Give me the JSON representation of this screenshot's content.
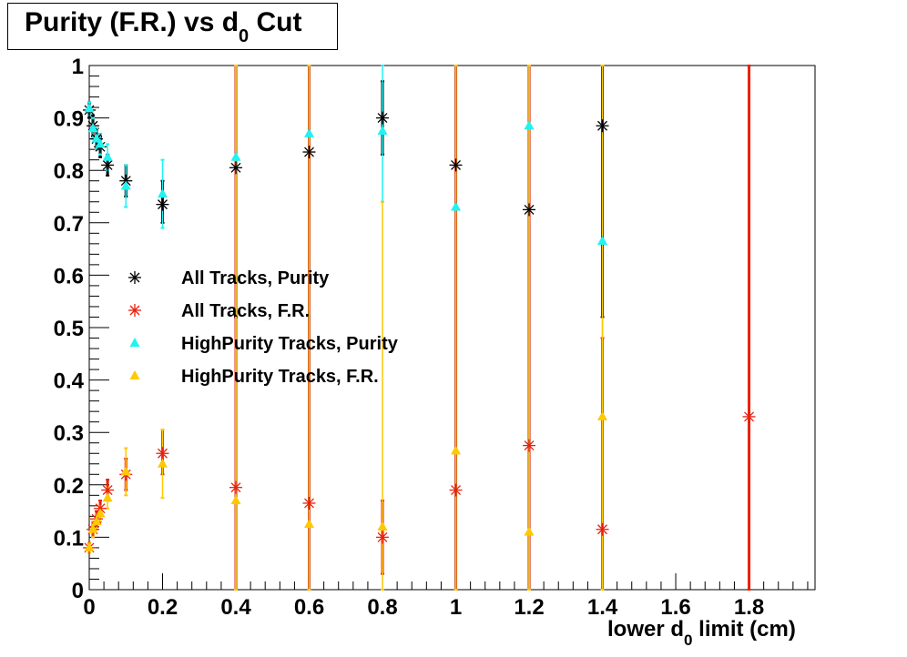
{
  "title": {
    "main": "Purity (F.R.) vs d",
    "sub": "0",
    "tail": "Cut"
  },
  "xlabel": {
    "main": "lower d",
    "sub": "0",
    "tail": "limit (cm)"
  },
  "colors": {
    "all_purity": "#000000",
    "all_fr": "#e8200c",
    "hp_purity": "#21f2f2",
    "hp_fr": "#ffc800"
  },
  "chart_data": {
    "type": "scatter",
    "title": "Purity (F.R.) vs d0 Cut",
    "xlabel": "lower d0 limit (cm)",
    "ylabel": "",
    "xlim": [
      0,
      1.98
    ],
    "ylim": [
      0,
      1
    ],
    "x_ticks": [
      "0",
      "0.2",
      "0.4",
      "0.6",
      "0.8",
      "1",
      "1.2",
      "1.4",
      "1.6",
      "1.8"
    ],
    "y_ticks": [
      "0",
      "0.1",
      "0.2",
      "0.3",
      "0.4",
      "0.5",
      "0.6",
      "0.7",
      "0.8",
      "0.9",
      "1"
    ],
    "legend_position": "center-left",
    "series": [
      {
        "name": "All Tracks, Purity",
        "marker": "star",
        "color": "#000000",
        "points": [
          {
            "x": 0.0,
            "y": 0.915,
            "lo": 0.9,
            "hi": 0.93
          },
          {
            "x": 0.01,
            "y": 0.885,
            "lo": 0.865,
            "hi": 0.905
          },
          {
            "x": 0.02,
            "y": 0.86,
            "lo": 0.84,
            "hi": 0.88
          },
          {
            "x": 0.03,
            "y": 0.845,
            "lo": 0.825,
            "hi": 0.865
          },
          {
            "x": 0.05,
            "y": 0.81,
            "lo": 0.79,
            "hi": 0.83
          },
          {
            "x": 0.1,
            "y": 0.78,
            "lo": 0.75,
            "hi": 0.81
          },
          {
            "x": 0.2,
            "y": 0.735,
            "lo": 0.7,
            "hi": 0.78
          },
          {
            "x": 0.4,
            "y": 0.805,
            "lo": 0.52,
            "hi": 1.0
          },
          {
            "x": 0.6,
            "y": 0.835,
            "lo": 0.0,
            "hi": 1.0
          },
          {
            "x": 0.8,
            "y": 0.9,
            "lo": 0.83,
            "hi": 0.97
          },
          {
            "x": 1.0,
            "y": 0.81,
            "lo": 0.0,
            "hi": 1.0
          },
          {
            "x": 1.2,
            "y": 0.725,
            "lo": 0.0,
            "hi": 1.0
          },
          {
            "x": 1.4,
            "y": 0.885,
            "lo": 0.52,
            "hi": 1.0
          }
        ]
      },
      {
        "name": "All Tracks, F.R.",
        "marker": "star",
        "color": "#e8200c",
        "points": [
          {
            "x": 0.0,
            "y": 0.08,
            "lo": 0.075,
            "hi": 0.09
          },
          {
            "x": 0.01,
            "y": 0.115,
            "lo": 0.1,
            "hi": 0.13
          },
          {
            "x": 0.02,
            "y": 0.135,
            "lo": 0.12,
            "hi": 0.15
          },
          {
            "x": 0.03,
            "y": 0.155,
            "lo": 0.14,
            "hi": 0.17
          },
          {
            "x": 0.05,
            "y": 0.19,
            "lo": 0.17,
            "hi": 0.21
          },
          {
            "x": 0.1,
            "y": 0.22,
            "lo": 0.19,
            "hi": 0.25
          },
          {
            "x": 0.2,
            "y": 0.26,
            "lo": 0.22,
            "hi": 0.305
          },
          {
            "x": 0.4,
            "y": 0.195,
            "lo": 0.0,
            "hi": 1.0
          },
          {
            "x": 0.6,
            "y": 0.165,
            "lo": 0.0,
            "hi": 1.0
          },
          {
            "x": 0.8,
            "y": 0.1,
            "lo": 0.03,
            "hi": 0.17
          },
          {
            "x": 1.0,
            "y": 0.19,
            "lo": 0.0,
            "hi": 1.0
          },
          {
            "x": 1.2,
            "y": 0.275,
            "lo": 0.0,
            "hi": 1.0
          },
          {
            "x": 1.4,
            "y": 0.115,
            "lo": 0.0,
            "hi": 0.48
          },
          {
            "x": 1.8,
            "y": 0.33,
            "lo": 0.0,
            "hi": 1.0
          }
        ]
      },
      {
        "name": "HighPurity Tracks, Purity",
        "marker": "triangle",
        "color": "#21f2f2",
        "points": [
          {
            "x": 0.0,
            "y": 0.918,
            "lo": 0.905,
            "hi": 0.93
          },
          {
            "x": 0.01,
            "y": 0.88,
            "lo": 0.86,
            "hi": 0.9
          },
          {
            "x": 0.02,
            "y": 0.86,
            "lo": 0.84,
            "hi": 0.88
          },
          {
            "x": 0.03,
            "y": 0.85,
            "lo": 0.83,
            "hi": 0.87
          },
          {
            "x": 0.05,
            "y": 0.825,
            "lo": 0.8,
            "hi": 0.85
          },
          {
            "x": 0.1,
            "y": 0.77,
            "lo": 0.73,
            "hi": 0.81
          },
          {
            "x": 0.2,
            "y": 0.755,
            "lo": 0.69,
            "hi": 0.82
          },
          {
            "x": 0.4,
            "y": 0.825,
            "lo": 0.0,
            "hi": 1.0
          },
          {
            "x": 0.6,
            "y": 0.87,
            "lo": 0.0,
            "hi": 1.0
          },
          {
            "x": 0.8,
            "y": 0.875,
            "lo": 0.74,
            "hi": 1.0
          },
          {
            "x": 1.0,
            "y": 0.73,
            "lo": 0.0,
            "hi": 1.0
          },
          {
            "x": 1.2,
            "y": 0.885,
            "lo": 0.0,
            "hi": 1.0
          },
          {
            "x": 1.4,
            "y": 0.665,
            "lo": 0.0,
            "hi": 1.0
          }
        ]
      },
      {
        "name": "HighPurity Tracks, F.R.",
        "marker": "triangle",
        "color": "#ffc800",
        "points": [
          {
            "x": 0.0,
            "y": 0.08,
            "lo": 0.07,
            "hi": 0.09
          },
          {
            "x": 0.01,
            "y": 0.115,
            "lo": 0.1,
            "hi": 0.13
          },
          {
            "x": 0.02,
            "y": 0.13,
            "lo": 0.115,
            "hi": 0.145
          },
          {
            "x": 0.03,
            "y": 0.145,
            "lo": 0.13,
            "hi": 0.16
          },
          {
            "x": 0.05,
            "y": 0.175,
            "lo": 0.155,
            "hi": 0.195
          },
          {
            "x": 0.1,
            "y": 0.225,
            "lo": 0.18,
            "hi": 0.27
          },
          {
            "x": 0.2,
            "y": 0.24,
            "lo": 0.175,
            "hi": 0.305
          },
          {
            "x": 0.4,
            "y": 0.17,
            "lo": 0.0,
            "hi": 1.0
          },
          {
            "x": 0.6,
            "y": 0.125,
            "lo": 0.0,
            "hi": 1.0
          },
          {
            "x": 0.8,
            "y": 0.12,
            "lo": 0.0,
            "hi": 0.74
          },
          {
            "x": 1.0,
            "y": 0.265,
            "lo": 0.0,
            "hi": 1.0
          },
          {
            "x": 1.2,
            "y": 0.11,
            "lo": 0.0,
            "hi": 1.0
          },
          {
            "x": 1.4,
            "y": 0.33,
            "lo": 0.0,
            "hi": 1.0
          }
        ]
      }
    ]
  }
}
